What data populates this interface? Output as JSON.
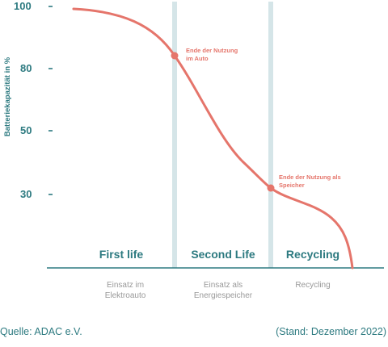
{
  "chart_data": {
    "type": "line",
    "ylabel": "Batteriekapazität in %",
    "yticks": [
      100,
      80,
      50,
      30
    ],
    "colors": {
      "curve": "#e5756b",
      "teal": "#2d7a80",
      "divider": "#d5e5e8",
      "muted": "#999999"
    },
    "phases": [
      {
        "title": "First life",
        "description": [
          "Einsatz im",
          "Elektroauto"
        ]
      },
      {
        "title": "Second Life",
        "description": [
          "Einsatz als",
          "Energiespeicher"
        ]
      },
      {
        "title": "Recycling",
        "description": [
          "Recycling"
        ]
      }
    ],
    "annotations": [
      {
        "lines": [
          "Ende der Nutzung",
          "im Auto"
        ],
        "y": 86
      },
      {
        "lines": [
          "Ende der Nutzung als",
          "Speicher"
        ],
        "y": 33
      }
    ]
  },
  "footer": {
    "source": "Quelle: ADAC e.V.",
    "date": "(Stand: Dezember 2022)"
  }
}
